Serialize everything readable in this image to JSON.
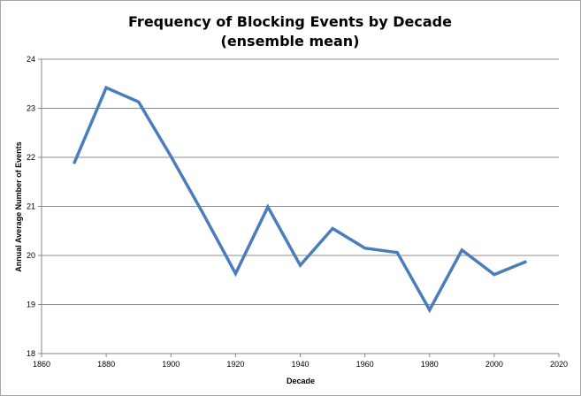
{
  "chart_data": {
    "type": "line",
    "title": "Frequency of Blocking Events by Decade",
    "subtitle": "(ensemble mean)",
    "xlabel": "Decade",
    "ylabel": "Annual Average Number of Events",
    "xlim": [
      1860,
      2020
    ],
    "ylim": [
      18,
      24
    ],
    "x_ticks": [
      "1860",
      "1880",
      "1900",
      "1920",
      "1940",
      "1960",
      "1980",
      "2000",
      "2020"
    ],
    "y_ticks": [
      "18",
      "19",
      "20",
      "21",
      "22",
      "23",
      "24"
    ],
    "grid": "horizontal",
    "legend": "none",
    "series": [
      {
        "color": "#4a7ebb",
        "x": [
          1870,
          1880,
          1890,
          1900,
          1910,
          1920,
          1930,
          1940,
          1950,
          1960,
          1970,
          1980,
          1990,
          2000,
          2010
        ],
        "values": [
          21.87,
          23.42,
          23.13,
          22.02,
          20.85,
          19.63,
          20.99,
          19.8,
          20.55,
          20.15,
          20.06,
          18.89,
          20.11,
          19.61,
          19.88
        ]
      }
    ]
  }
}
